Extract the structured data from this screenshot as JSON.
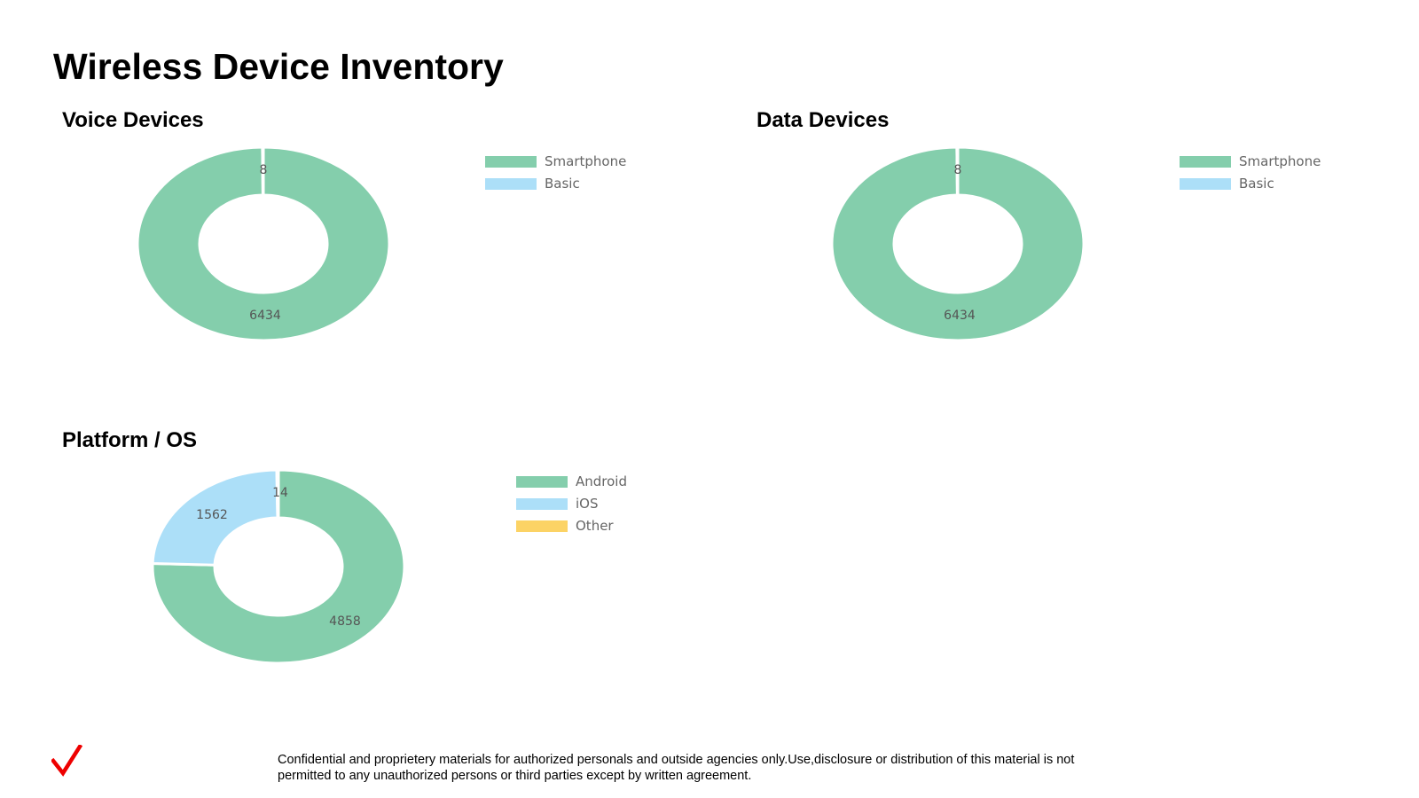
{
  "page_title": "Wireless Device Inventory",
  "colors": {
    "green": "#84CEAC",
    "blue": "#ACDFF8",
    "yellow": "#FCD365",
    "brand_red": "#EE0000"
  },
  "chart_data": [
    {
      "type": "pie",
      "variant": "donut",
      "title": "Voice Devices",
      "categories": [
        "Smartphone",
        "Basic"
      ],
      "values": [
        6434,
        8
      ],
      "colors": [
        "#84CEAC",
        "#ACDFF8"
      ],
      "legend": "right"
    },
    {
      "type": "pie",
      "variant": "donut",
      "title": "Data Devices",
      "categories": [
        "Smartphone",
        "Basic"
      ],
      "values": [
        6434,
        8
      ],
      "colors": [
        "#84CEAC",
        "#ACDFF8"
      ],
      "legend": "right"
    },
    {
      "type": "pie",
      "variant": "donut",
      "title": "Platform / OS",
      "categories": [
        "Android",
        "iOS",
        "Other"
      ],
      "values": [
        4858,
        1562,
        14
      ],
      "colors": [
        "#84CEAC",
        "#ACDFF8",
        "#FCD365"
      ],
      "legend": "right"
    }
  ],
  "footer": {
    "logo_icon": "checkmark-logo-icon",
    "disclaimer_line1": "Confidential and proprietery materials for authorized personals and outside agencies only.Use,disclosure or distribution of this material is not",
    "disclaimer_line2": "permitted to any unauthorized persons or third parties except by written agreement."
  }
}
